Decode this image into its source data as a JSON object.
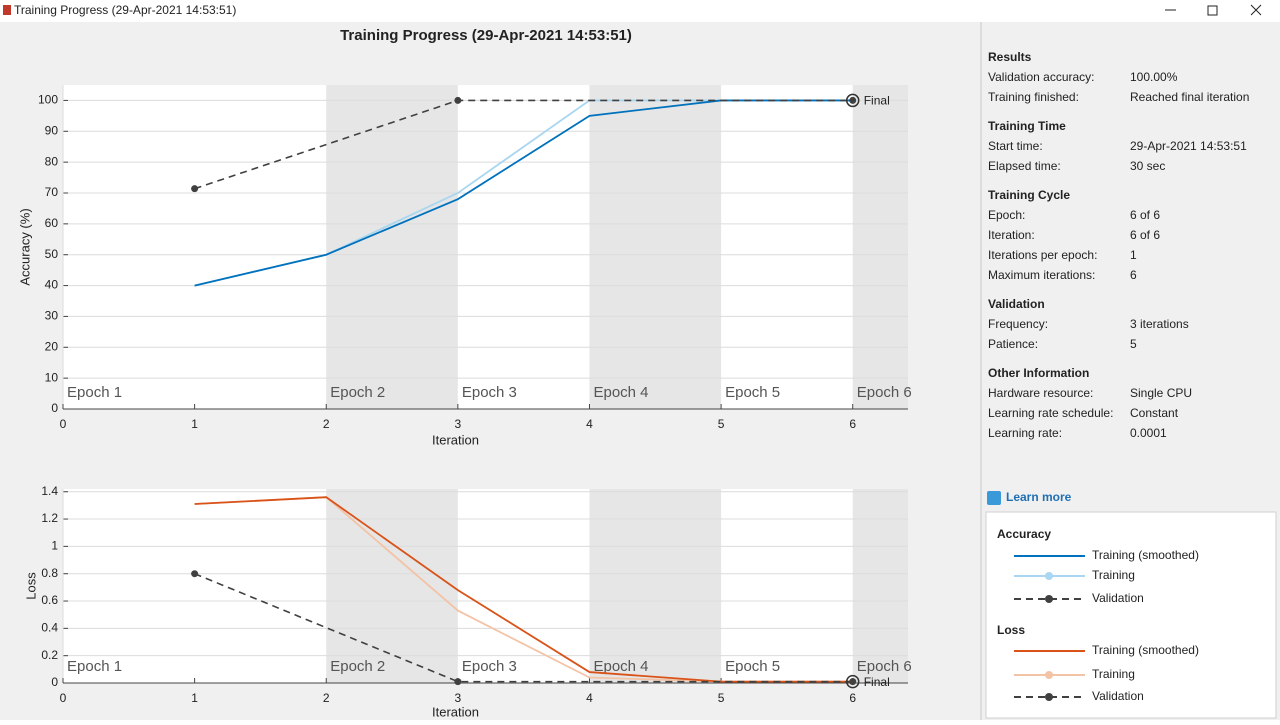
{
  "window_title": "Training Progress (29-Apr-2021 14:53:51)",
  "chart_data": [
    {
      "type": "line",
      "title": "Training Progress (29-Apr-2021 14:53:51)",
      "xlabel": "Iteration",
      "ylabel": "Accuracy (%)",
      "legend_title": "Accuracy",
      "xlim": [
        0,
        6.42
      ],
      "xticks": [
        0,
        1,
        2,
        3,
        4,
        5,
        6
      ],
      "ylim": [
        0,
        105
      ],
      "yticks": [
        0,
        10,
        20,
        30,
        40,
        50,
        60,
        70,
        80,
        90,
        100
      ],
      "grid": true,
      "epochs": [
        "Epoch 1",
        "Epoch 2",
        "Epoch 3",
        "Epoch 4",
        "Epoch 5",
        "Epoch 6"
      ],
      "epoch_starts": [
        0,
        2,
        3,
        4,
        5,
        6
      ],
      "annotation": "Final",
      "series": [
        {
          "name": "Training (smoothed)",
          "color": "#0072bd",
          "x": [
            1,
            2,
            3,
            4,
            5,
            6
          ],
          "values": [
            40,
            50,
            68,
            95,
            100,
            100
          ]
        },
        {
          "name": "Training",
          "color": "#a9d6f0",
          "x": [
            1,
            2,
            3,
            4,
            5,
            6
          ],
          "values": [
            40,
            50,
            70,
            100,
            100,
            100
          ]
        },
        {
          "name": "Validation",
          "color": "#404040",
          "dashed": true,
          "markers": true,
          "x": [
            1,
            3,
            6
          ],
          "values": [
            71.4,
            100,
            100
          ]
        }
      ]
    },
    {
      "type": "line",
      "xlabel": "Iteration",
      "ylabel": "Loss",
      "legend_title": "Loss",
      "xlim": [
        0,
        6.42
      ],
      "xticks": [
        0,
        1,
        2,
        3,
        4,
        5,
        6
      ],
      "ylim": [
        0,
        1.42
      ],
      "yticks": [
        0,
        0.2,
        0.4,
        0.6,
        0.8,
        1,
        1.2,
        1.4
      ],
      "grid": true,
      "epochs": [
        "Epoch 1",
        "Epoch 2",
        "Epoch 3",
        "Epoch 4",
        "Epoch 5",
        "Epoch 6"
      ],
      "epoch_starts": [
        0,
        2,
        3,
        4,
        5,
        6
      ],
      "annotation": "Final",
      "series": [
        {
          "name": "Training (smoothed)",
          "color": "#d95319",
          "x": [
            1,
            2,
            3,
            4,
            5,
            6
          ],
          "values": [
            1.31,
            1.36,
            0.68,
            0.08,
            0.01,
            0.01
          ]
        },
        {
          "name": "Training",
          "color": "#f3c3a6",
          "x": [
            1,
            2,
            3,
            4,
            5,
            6
          ],
          "values": [
            1.31,
            1.36,
            0.53,
            0.04,
            0.01,
            0.01
          ]
        },
        {
          "name": "Validation",
          "color": "#404040",
          "dashed": true,
          "markers": true,
          "x": [
            1,
            3,
            6
          ],
          "values": [
            0.8,
            0.01,
            0.01
          ]
        }
      ]
    }
  ],
  "info": [
    {
      "heading": "Results",
      "rows": [
        [
          "Validation accuracy:",
          "100.00%"
        ],
        [
          "Training finished:",
          "Reached final iteration"
        ]
      ]
    },
    {
      "heading": "Training Time",
      "rows": [
        [
          "Start time:",
          "29-Apr-2021 14:53:51"
        ],
        [
          "Elapsed time:",
          "30 sec"
        ]
      ]
    },
    {
      "heading": "Training Cycle",
      "rows": [
        [
          "Epoch:",
          "6 of 6"
        ],
        [
          "Iteration:",
          "6 of 6"
        ],
        [
          "Iterations per epoch:",
          "1"
        ],
        [
          "Maximum iterations:",
          "6"
        ]
      ]
    },
    {
      "heading": "Validation",
      "rows": [
        [
          "Frequency:",
          "3 iterations"
        ],
        [
          "Patience:",
          "5"
        ]
      ]
    },
    {
      "heading": "Other Information",
      "rows": [
        [
          "Hardware resource:",
          "Single CPU"
        ],
        [
          "Learning rate schedule:",
          "Constant"
        ],
        [
          "Learning rate:",
          "0.0001"
        ]
      ]
    }
  ],
  "learn_more": "Learn more"
}
